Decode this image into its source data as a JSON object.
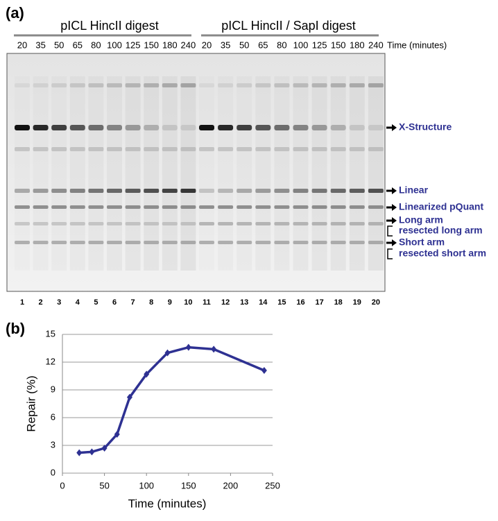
{
  "gel": {
    "label": "(a)",
    "groups": [
      "pICL HincII digest",
      "pICL HincII / SapI digest"
    ],
    "times": [
      20,
      35,
      50,
      65,
      80,
      100,
      125,
      150,
      180,
      240,
      20,
      35,
      50,
      65,
      80,
      100,
      125,
      150,
      180,
      240
    ],
    "time_label": "Time (minutes)",
    "lanes": [
      1,
      2,
      3,
      4,
      5,
      6,
      7,
      8,
      9,
      10,
      11,
      12,
      13,
      14,
      15,
      16,
      17,
      18,
      19,
      20
    ],
    "bands": [
      "X-Structure",
      "Linear",
      "Linearized pQuant",
      "Long arm",
      "resected long arm",
      "Short arm",
      "resected short arm"
    ]
  },
  "chart_data": {
    "type": "line",
    "label": "(b)",
    "x_label": "Time (minutes)",
    "y_label": "Repair (%)",
    "x": [
      20,
      35,
      50,
      65,
      80,
      100,
      125,
      150,
      180,
      240
    ],
    "series": [
      {
        "color": "#2e3192",
        "values": [
          2.2,
          2.3,
          2.7,
          4.2,
          8.2,
          10.7,
          13.0,
          13.6,
          13.4,
          11.1
        ]
      }
    ],
    "xlim": [
      0,
      250
    ],
    "xticks": [
      0,
      50,
      100,
      150,
      200,
      250
    ],
    "ylim": [
      0,
      15
    ],
    "yticks": [
      0,
      3,
      6,
      9,
      12,
      15
    ],
    "grid": true
  }
}
